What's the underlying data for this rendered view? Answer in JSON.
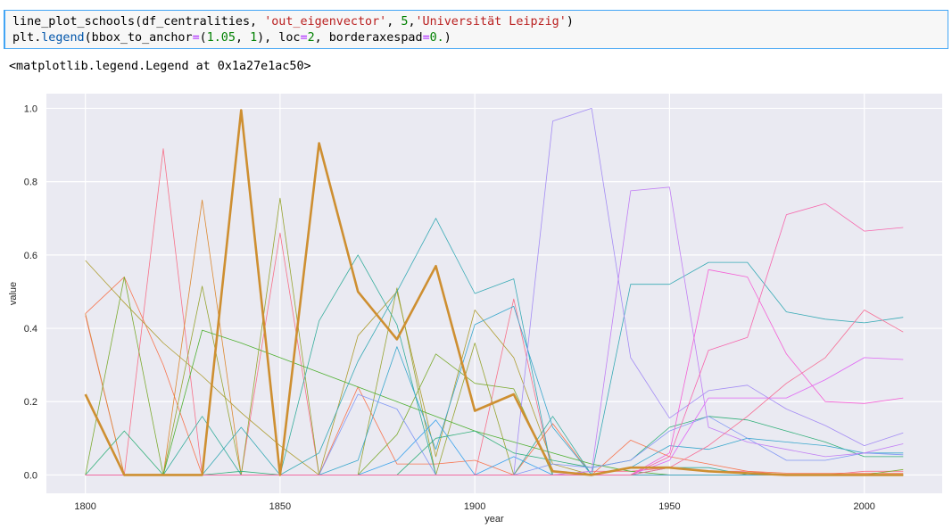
{
  "code": {
    "line1": [
      {
        "text": "line_plot_schools",
        "color": "#000000"
      },
      {
        "text": "(df_centralities, ",
        "color": "#000000"
      },
      {
        "text": "'out_eigenvector'",
        "color": "#ba2121"
      },
      {
        "text": ", ",
        "color": "#000000"
      },
      {
        "text": "5",
        "color": "#008000"
      },
      {
        "text": ",",
        "color": "#000000"
      },
      {
        "text": "'Universität Leipzig'",
        "color": "#ba2121"
      },
      {
        "text": ")",
        "color": "#000000"
      }
    ],
    "line2": [
      {
        "text": "plt",
        "color": "#000000"
      },
      {
        "text": ".",
        "color": "#000000"
      },
      {
        "text": "legend",
        "color": "#0055aa"
      },
      {
        "text": "(bbox_to_anchor",
        "color": "#000000"
      },
      {
        "text": "=",
        "color": "#aa22ff"
      },
      {
        "text": "(",
        "color": "#000000"
      },
      {
        "text": "1.05",
        "color": "#008000"
      },
      {
        "text": ", ",
        "color": "#000000"
      },
      {
        "text": "1",
        "color": "#008000"
      },
      {
        "text": "), loc",
        "color": "#000000"
      },
      {
        "text": "=",
        "color": "#aa22ff"
      },
      {
        "text": "2",
        "color": "#008000"
      },
      {
        "text": ", borderaxespad",
        "color": "#000000"
      },
      {
        "text": "=",
        "color": "#aa22ff"
      },
      {
        "text": "0.",
        "color": "#008000"
      },
      {
        "text": ")",
        "color": "#000000"
      }
    ]
  },
  "output": {
    "text": "<matplotlib.legend.Legend at 0x1a27e1ac50>"
  },
  "chart_data": {
    "type": "line",
    "xlabel": "year",
    "ylabel": "value",
    "xlim": [
      1790,
      2020
    ],
    "ylim": [
      -0.05,
      1.04
    ],
    "xticks": [
      1800,
      1850,
      1900,
      1950,
      2000
    ],
    "yticks": [
      0.0,
      0.2,
      0.4,
      0.6,
      0.8,
      1.0
    ],
    "grid": true,
    "background": "#eaeaf2",
    "x": [
      1800,
      1810,
      1820,
      1830,
      1840,
      1850,
      1860,
      1870,
      1880,
      1890,
      1900,
      1910,
      1920,
      1930,
      1940,
      1950,
      1960,
      1970,
      1980,
      1990,
      2000,
      2010
    ],
    "series": [
      {
        "color": "#f77189",
        "width": 0.8,
        "values": [
          0.435,
          0.0,
          0.89,
          0.0,
          0.0,
          0.66,
          0.0,
          0.0,
          0.0,
          0.0,
          0.0,
          0.48,
          0.0,
          0.01,
          0.01,
          0.02,
          0.01,
          0.01,
          0.0,
          0.0,
          0.01,
          0.01
        ]
      },
      {
        "color": "#f7754f",
        "width": 0.8,
        "values": [
          0.44,
          0.54,
          0.3,
          0.0,
          0.0,
          0.0,
          0.0,
          0.24,
          0.03,
          0.03,
          0.04,
          0.0,
          0.14,
          0.0,
          0.095,
          0.05,
          0.03,
          0.01,
          0.005,
          0.005,
          0.005,
          0.005
        ]
      },
      {
        "color": "#dc8932",
        "width": 0.8,
        "values": [
          0.44,
          0.0,
          0.0,
          0.75,
          0.0,
          0.0,
          0.0,
          0.0,
          0.0,
          0.0,
          0.0,
          0.0,
          0.0,
          0.0,
          0.0,
          0.0,
          0.0,
          0.0,
          0.0,
          0.0,
          0.0,
          0.0
        ]
      },
      {
        "color": "#ce8f31",
        "width": 2.6,
        "values": [
          0.22,
          0.0,
          0.0,
          0.0,
          0.995,
          0.0,
          0.905,
          0.5,
          0.37,
          0.57,
          0.175,
          0.22,
          0.01,
          0.0,
          0.02,
          0.02,
          0.01,
          0.005,
          0.0,
          0.0,
          0.0,
          0.0
        ]
      },
      {
        "color": "#ae9d31",
        "width": 0.8,
        "values": [
          0.585,
          0.47,
          0.36,
          0.27,
          0.17,
          0.08,
          0.0,
          0.38,
          0.5,
          0.05,
          0.45,
          0.32,
          0.03,
          0.0,
          0.0,
          0.0,
          0.0,
          0.0,
          0.0,
          0.0,
          0.0,
          0.0
        ]
      },
      {
        "color": "#97a431",
        "width": 0.8,
        "values": [
          0.0,
          0.0,
          0.0,
          0.515,
          0.0,
          0.755,
          0.0,
          0.0,
          0.51,
          0.0,
          0.36,
          0.0,
          0.0,
          0.0,
          0.0,
          0.0,
          0.0,
          0.0,
          0.0,
          0.0,
          0.0,
          0.0
        ]
      },
      {
        "color": "#7dab31",
        "width": 0.8,
        "values": [
          0.0,
          0.54,
          0.0,
          0.0,
          0.0,
          0.0,
          0.0,
          0.0,
          0.11,
          0.33,
          0.25,
          0.235,
          0.0,
          0.0,
          0.0,
          0.0,
          0.0,
          0.0,
          0.0,
          0.0,
          0.0,
          0.015
        ]
      },
      {
        "color": "#4fb031",
        "width": 0.8,
        "values": [
          0.0,
          0.0,
          0.0,
          0.395,
          0.36,
          0.32,
          0.28,
          0.24,
          0.2,
          0.16,
          0.12,
          0.09,
          0.06,
          0.03,
          0.01,
          0.0,
          0.0,
          0.0,
          0.0,
          0.0,
          0.0,
          0.0
        ]
      },
      {
        "color": "#33b07a",
        "width": 0.8,
        "values": [
          0.0,
          0.12,
          0.0,
          0.0,
          0.01,
          0.0,
          0.0,
          0.0,
          0.0,
          0.1,
          0.12,
          0.06,
          0.04,
          0.02,
          0.04,
          0.13,
          0.16,
          0.15,
          0.12,
          0.09,
          0.05,
          0.05
        ]
      },
      {
        "color": "#35ad9b",
        "width": 0.8,
        "values": [
          0.0,
          0.0,
          0.0,
          0.16,
          0.0,
          0.0,
          0.42,
          0.6,
          0.41,
          0.0,
          0.0,
          0.0,
          0.16,
          0.0,
          0.0,
          0.02,
          0.02,
          0.0,
          0.0,
          0.0,
          0.0,
          0.0
        ]
      },
      {
        "color": "#37aab5",
        "width": 0.8,
        "values": [
          0.0,
          0.0,
          0.0,
          0.0,
          0.13,
          0.0,
          0.06,
          0.31,
          0.5,
          0.7,
          0.495,
          0.535,
          0.0,
          0.0,
          0.52,
          0.52,
          0.58,
          0.58,
          0.445,
          0.425,
          0.415,
          0.43
        ]
      },
      {
        "color": "#38a7cc",
        "width": 0.8,
        "values": [
          0.0,
          0.0,
          0.0,
          0.0,
          0.0,
          0.0,
          0.0,
          0.04,
          0.35,
          0.07,
          0.41,
          0.46,
          0.13,
          0.0,
          0.02,
          0.08,
          0.07,
          0.1,
          0.09,
          0.08,
          0.06,
          0.06
        ]
      },
      {
        "color": "#3ba3ec",
        "width": 0.8,
        "values": [
          0.0,
          0.0,
          0.0,
          0.0,
          0.0,
          0.0,
          0.0,
          0.0,
          0.04,
          0.15,
          0.0,
          0.05,
          0.0,
          0.0,
          0.0,
          0.0,
          0.0,
          0.0,
          0.0,
          0.0,
          0.0,
          0.0
        ]
      },
      {
        "color": "#8197f4",
        "width": 0.8,
        "values": [
          0.0,
          0.0,
          0.0,
          0.0,
          0.0,
          0.0,
          0.0,
          0.22,
          0.18,
          0.0,
          0.0,
          0.0,
          0.03,
          0.02,
          0.04,
          0.12,
          0.16,
          0.1,
          0.04,
          0.04,
          0.06,
          0.055
        ]
      },
      {
        "color": "#a48cf4",
        "width": 0.8,
        "values": [
          0.0,
          0.0,
          0.0,
          0.0,
          0.0,
          0.0,
          0.0,
          0.0,
          0.0,
          0.0,
          0.0,
          0.0,
          0.965,
          1.0,
          0.32,
          0.155,
          0.23,
          0.245,
          0.18,
          0.135,
          0.08,
          0.115
        ]
      },
      {
        "color": "#c17ff4",
        "width": 0.8,
        "values": [
          0.0,
          0.0,
          0.0,
          0.0,
          0.0,
          0.0,
          0.0,
          0.0,
          0.0,
          0.0,
          0.0,
          0.0,
          0.0,
          0.01,
          0.775,
          0.785,
          0.13,
          0.09,
          0.07,
          0.05,
          0.06,
          0.085
        ]
      },
      {
        "color": "#e066f4",
        "width": 0.8,
        "values": [
          0.0,
          0.0,
          0.0,
          0.0,
          0.0,
          0.0,
          0.0,
          0.0,
          0.0,
          0.0,
          0.0,
          0.0,
          0.0,
          0.0,
          0.0,
          0.04,
          0.21,
          0.21,
          0.21,
          0.26,
          0.32,
          0.315
        ]
      },
      {
        "color": "#f45fd5",
        "width": 0.8,
        "values": [
          0.0,
          0.0,
          0.0,
          0.0,
          0.0,
          0.0,
          0.0,
          0.0,
          0.0,
          0.0,
          0.0,
          0.0,
          0.0,
          0.0,
          0.0,
          0.06,
          0.56,
          0.54,
          0.33,
          0.2,
          0.195,
          0.21
        ]
      },
      {
        "color": "#f667ad",
        "width": 0.8,
        "values": [
          0.0,
          0.0,
          0.0,
          0.0,
          0.0,
          0.0,
          0.0,
          0.0,
          0.0,
          0.0,
          0.0,
          0.0,
          0.0,
          0.0,
          0.0,
          0.05,
          0.34,
          0.375,
          0.71,
          0.74,
          0.665,
          0.675
        ]
      },
      {
        "color": "#f66d94",
        "width": 0.8,
        "values": [
          0.0,
          0.0,
          0.0,
          0.0,
          0.0,
          0.0,
          0.0,
          0.0,
          0.0,
          0.0,
          0.0,
          0.0,
          0.0,
          0.0,
          0.0,
          0.02,
          0.08,
          0.16,
          0.25,
          0.32,
          0.45,
          0.39
        ]
      }
    ]
  }
}
